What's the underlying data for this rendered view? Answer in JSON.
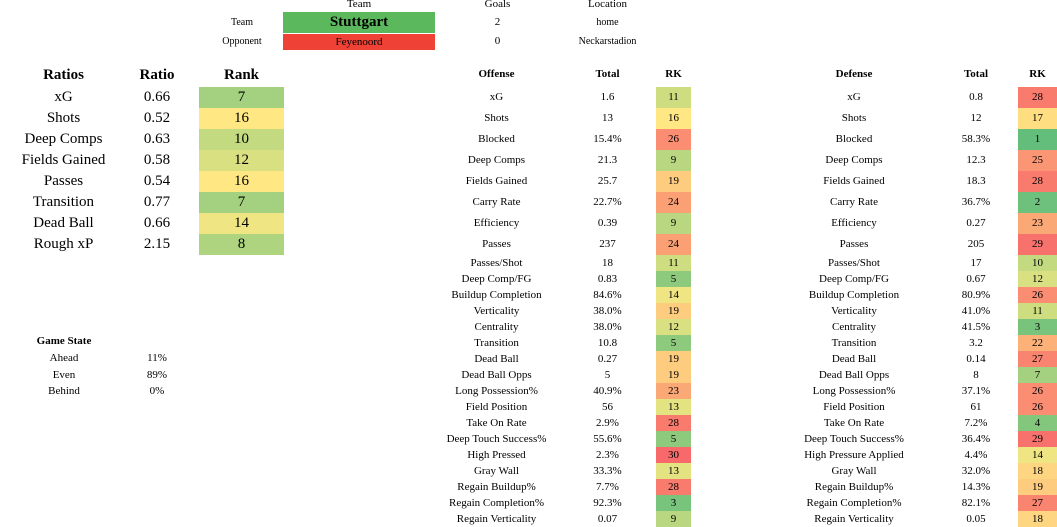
{
  "header": {
    "team_col": "Team",
    "goals_col": "Goals",
    "location_col": "Location",
    "team_label": "Team",
    "team_name": "Stuttgart",
    "team_goals": "2",
    "team_location": "home",
    "opponent_label": "Opponent",
    "opponent_name": "Feyenoord",
    "opponent_goals": "0",
    "opponent_location": "Neckarstadion",
    "team_color": "#5cb85c",
    "opponent_color": "#ef4136"
  },
  "ratios": {
    "headers": [
      "Ratios",
      "Ratio",
      "Rank"
    ],
    "rows": [
      {
        "name": "xG",
        "value": "0.66",
        "rank": "7"
      },
      {
        "name": "Shots",
        "value": "0.52",
        "rank": "16"
      },
      {
        "name": "Deep Comps",
        "value": "0.63",
        "rank": "10"
      },
      {
        "name": "Fields Gained",
        "value": "0.58",
        "rank": "12"
      },
      {
        "name": "Passes",
        "value": "0.54",
        "rank": "16"
      },
      {
        "name": "Transition",
        "value": "0.77",
        "rank": "7"
      },
      {
        "name": "Dead Ball",
        "value": "0.66",
        "rank": "14"
      },
      {
        "name": "Rough xP",
        "value": "2.15",
        "rank": "8"
      }
    ]
  },
  "game_state": {
    "title": "Game State",
    "rows": [
      {
        "name": "Ahead",
        "value": "11%"
      },
      {
        "name": "Even",
        "value": "89%"
      },
      {
        "name": "Behind",
        "value": "0%"
      }
    ]
  },
  "offense": {
    "headers": [
      "Offense",
      "Total",
      "RK"
    ],
    "rows": [
      {
        "name": "xG",
        "value": "1.6",
        "rank": "11"
      },
      {
        "name": "Shots",
        "value": "13",
        "rank": "16"
      },
      {
        "name": "Blocked",
        "value": "15.4%",
        "rank": "26"
      },
      {
        "name": "Deep Comps",
        "value": "21.3",
        "rank": "9"
      },
      {
        "name": "Fields Gained",
        "value": "25.7",
        "rank": "19"
      },
      {
        "name": "Carry Rate",
        "value": "22.7%",
        "rank": "24"
      },
      {
        "name": "Efficiency",
        "value": "0.39",
        "rank": "9"
      },
      {
        "name": "Passes",
        "value": "237",
        "rank": "24"
      },
      {
        "name": "Passes/Shot",
        "value": "18",
        "rank": "11"
      },
      {
        "name": "Deep Comp/FG",
        "value": "0.83",
        "rank": "5"
      },
      {
        "name": "Buildup Completion",
        "value": "84.6%",
        "rank": "14"
      },
      {
        "name": "Verticality",
        "value": "38.0%",
        "rank": "19"
      },
      {
        "name": "Centrality",
        "value": "38.0%",
        "rank": "12"
      },
      {
        "name": "Transition",
        "value": "10.8",
        "rank": "5"
      },
      {
        "name": "Dead Ball",
        "value": "0.27",
        "rank": "19"
      },
      {
        "name": "Dead Ball Opps",
        "value": "5",
        "rank": "19"
      },
      {
        "name": "Long Possession%",
        "value": "40.9%",
        "rank": "23"
      },
      {
        "name": "Field Position",
        "value": "56",
        "rank": "13"
      },
      {
        "name": "Take On Rate",
        "value": "2.9%",
        "rank": "28"
      },
      {
        "name": "Deep Touch Success%",
        "value": "55.6%",
        "rank": "5"
      },
      {
        "name": "High Pressed",
        "value": "2.3%",
        "rank": "30"
      },
      {
        "name": "Gray Wall",
        "value": "33.3%",
        "rank": "13"
      },
      {
        "name": "Regain Buildup%",
        "value": "7.7%",
        "rank": "28"
      },
      {
        "name": "Regain Completion%",
        "value": "92.3%",
        "rank": "3"
      },
      {
        "name": "Regain Verticality",
        "value": "0.07",
        "rank": "9"
      }
    ]
  },
  "defense": {
    "headers": [
      "Defense",
      "Total",
      "RK"
    ],
    "rows": [
      {
        "name": "xG",
        "value": "0.8",
        "rank": "28"
      },
      {
        "name": "Shots",
        "value": "12",
        "rank": "17"
      },
      {
        "name": "Blocked",
        "value": "58.3%",
        "rank": "1"
      },
      {
        "name": "Deep Comps",
        "value": "12.3",
        "rank": "25"
      },
      {
        "name": "Fields Gained",
        "value": "18.3",
        "rank": "28"
      },
      {
        "name": "Carry Rate",
        "value": "36.7%",
        "rank": "2"
      },
      {
        "name": "Efficiency",
        "value": "0.27",
        "rank": "23"
      },
      {
        "name": "Passes",
        "value": "205",
        "rank": "29"
      },
      {
        "name": "Passes/Shot",
        "value": "17",
        "rank": "10"
      },
      {
        "name": "Deep Comp/FG",
        "value": "0.67",
        "rank": "12"
      },
      {
        "name": "Buildup Completion",
        "value": "80.9%",
        "rank": "26"
      },
      {
        "name": "Verticality",
        "value": "41.0%",
        "rank": "11"
      },
      {
        "name": "Centrality",
        "value": "41.5%",
        "rank": "3"
      },
      {
        "name": "Transition",
        "value": "3.2",
        "rank": "22"
      },
      {
        "name": "Dead Ball",
        "value": "0.14",
        "rank": "27"
      },
      {
        "name": "Dead Ball Opps",
        "value": "8",
        "rank": "7"
      },
      {
        "name": "Long Possession%",
        "value": "37.1%",
        "rank": "26"
      },
      {
        "name": "Field Position",
        "value": "61",
        "rank": "26"
      },
      {
        "name": "Take On Rate",
        "value": "7.2%",
        "rank": "4"
      },
      {
        "name": "Deep Touch Success%",
        "value": "36.4%",
        "rank": "29"
      },
      {
        "name": "High Pressure Applied",
        "value": "4.4%",
        "rank": "14"
      },
      {
        "name": "Gray Wall",
        "value": "32.0%",
        "rank": "18"
      },
      {
        "name": "Regain Buildup%",
        "value": "14.3%",
        "rank": "19"
      },
      {
        "name": "Regain Completion%",
        "value": "82.1%",
        "rank": "27"
      },
      {
        "name": "Regain Verticality",
        "value": "0.05",
        "rank": "18"
      }
    ]
  }
}
